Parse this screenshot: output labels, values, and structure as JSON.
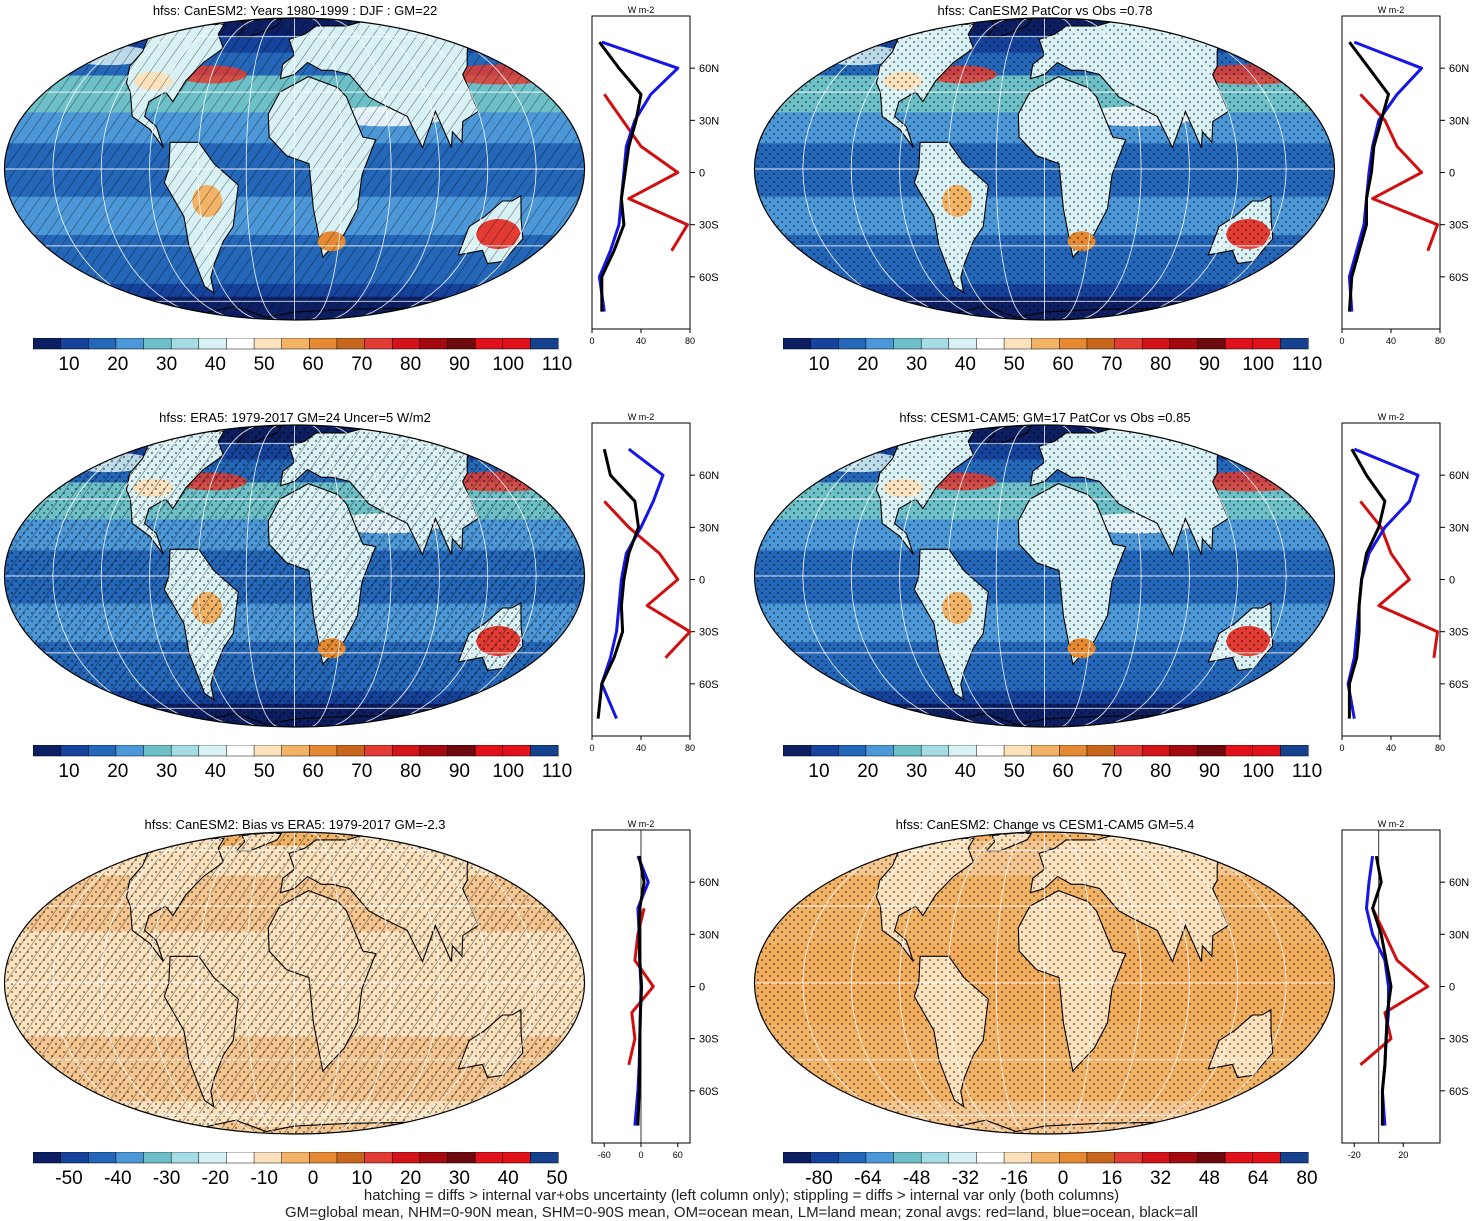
{
  "panels": [
    {
      "title": "hfss: CanESM2: Years 1980-1999 : DJF : GM=22",
      "colorbar": [
        "10",
        "20",
        "30",
        "40",
        "50",
        "60",
        "70",
        "80",
        "90",
        "100",
        "110"
      ],
      "zonal_x_ticks": [
        "0",
        "40",
        "80"
      ],
      "kind": "clim",
      "hatch": true,
      "stipple": false
    },
    {
      "title": "hfss: CanESM2 PatCor vs Obs =0.78",
      "colorbar": [
        "10",
        "20",
        "30",
        "40",
        "50",
        "60",
        "70",
        "80",
        "90",
        "100",
        "110"
      ],
      "zonal_x_ticks": [
        "0",
        "40",
        "80"
      ],
      "kind": "clim",
      "hatch": false,
      "stipple": true
    },
    {
      "title": "hfss: ERA5: 1979-2017 GM=24 Uncer=5 W/m2",
      "colorbar": [
        "10",
        "20",
        "30",
        "40",
        "50",
        "60",
        "70",
        "80",
        "90",
        "100",
        "110"
      ],
      "zonal_x_ticks": [
        "0",
        "40",
        "80"
      ],
      "kind": "clim",
      "hatch": true,
      "stipple": true
    },
    {
      "title": "hfss: CESM1-CAM5: GM=17 PatCor vs Obs =0.85",
      "colorbar": [
        "10",
        "20",
        "30",
        "40",
        "50",
        "60",
        "70",
        "80",
        "90",
        "100",
        "110"
      ],
      "zonal_x_ticks": [
        "0",
        "40",
        "80"
      ],
      "kind": "clim",
      "hatch": false,
      "stipple": true
    },
    {
      "title": "hfss: CanESM2: Bias vs ERA5: 1979-2017 GM=-2.3",
      "colorbar": [
        "-50",
        "-40",
        "-30",
        "-20",
        "-10",
        "0",
        "10",
        "20",
        "30",
        "40",
        "50"
      ],
      "zonal_x_ticks": [
        "-60",
        "0",
        "60"
      ],
      "kind": "diff",
      "hatch": true,
      "stipple": true
    },
    {
      "title": "hfss: CanESM2: Change vs CESM1-CAM5 GM=5.4",
      "colorbar": [
        "-80",
        "-64",
        "-48",
        "-32",
        "-16",
        "0",
        "16",
        "32",
        "48",
        "64",
        "80"
      ],
      "zonal_x_ticks": [
        "-20",
        "20"
      ],
      "kind": "diff",
      "hatch": false,
      "stipple": true
    }
  ],
  "zonal_unit": "W m-2",
  "lat_labels": [
    "60N",
    "30N",
    "0",
    "30S",
    "60S"
  ],
  "footer": {
    "line1": "hatching = diffs > internal var+obs uncertainty (left column only); stippling = diffs > internal var only (both columns)",
    "line2": "GM=global mean, NHM=0-90N mean, SHM=0-90S mean, OM=ocean mean, LM=land mean; zonal avgs: red=land, blue=ocean, black=all"
  },
  "colors": {
    "palette": [
      "#0d1f63",
      "#15429b",
      "#2466b7",
      "#4c97d8",
      "#6dc0c7",
      "#a5dce4",
      "#d7f1f4",
      "#ffffff",
      "#fbe2bd",
      "#f3b366",
      "#e58a32",
      "#c9661d",
      "#e23b33",
      "#d2141a",
      "#a3090e",
      "#6e0a0e",
      "#e0111b",
      "#e01119",
      "#15418f"
    ],
    "land_line": "#d01010",
    "ocean_line": "#1515e8",
    "all_line": "#000000"
  },
  "chart_data": [
    {
      "type": "heatmap",
      "title": "hfss: CanESM2: Years 1980-1999 : DJF : GM=22",
      "colorbar_ticks": [
        10,
        20,
        30,
        40,
        50,
        60,
        70,
        80,
        90,
        100,
        110
      ],
      "zonal_mean": {
        "xlim": [
          0,
          80
        ],
        "ylim": [
          -90,
          90
        ],
        "lat": [
          -80,
          -60,
          -45,
          -30,
          -15,
          0,
          15,
          30,
          45,
          60,
          75
        ],
        "land": [
          5,
          null,
          65,
          78,
          30,
          70,
          40,
          25,
          10,
          null,
          null
        ],
        "ocean": [
          10,
          6,
          15,
          22,
          24,
          26,
          28,
          35,
          48,
          70,
          8
        ],
        "all": [
          8,
          8,
          18,
          26,
          24,
          27,
          30,
          36,
          40,
          22,
          6
        ]
      }
    },
    {
      "type": "heatmap",
      "title": "hfss: CanESM2 PatCor vs Obs =0.78",
      "colorbar_ticks": [
        10,
        20,
        30,
        40,
        50,
        60,
        70,
        80,
        90,
        100,
        110
      ],
      "zonal_mean": {
        "xlim": [
          0,
          80
        ],
        "ylim": [
          -90,
          90
        ],
        "lat": [
          -80,
          -60,
          -45,
          -30,
          -15,
          0,
          15,
          30,
          45,
          60,
          75
        ],
        "land": [
          5,
          null,
          70,
          78,
          25,
          65,
          45,
          35,
          15,
          null,
          null
        ],
        "ocean": [
          8,
          6,
          12,
          18,
          20,
          22,
          25,
          30,
          45,
          65,
          10
        ],
        "all": [
          6,
          8,
          14,
          20,
          20,
          24,
          26,
          32,
          38,
          22,
          6
        ]
      }
    },
    {
      "type": "heatmap",
      "title": "hfss: ERA5: 1979-2017 GM=24 Uncer=5 W/m2",
      "colorbar_ticks": [
        10,
        20,
        30,
        40,
        50,
        60,
        70,
        80,
        90,
        100,
        110
      ],
      "zonal_mean": {
        "xlim": [
          0,
          80
        ],
        "ylim": [
          -90,
          90
        ],
        "lat": [
          -80,
          -60,
          -45,
          -30,
          -15,
          0,
          15,
          30,
          45,
          60,
          75
        ],
        "land": [
          0,
          null,
          60,
          80,
          45,
          70,
          55,
          30,
          10,
          null,
          null
        ],
        "ocean": [
          20,
          8,
          15,
          20,
          22,
          24,
          28,
          40,
          50,
          58,
          30
        ],
        "all": [
          5,
          8,
          18,
          25,
          24,
          26,
          30,
          38,
          35,
          15,
          10
        ]
      }
    },
    {
      "type": "heatmap",
      "title": "hfss: CESM1-CAM5: GM=17 PatCor vs Obs =0.85",
      "colorbar_ticks": [
        10,
        20,
        30,
        40,
        50,
        60,
        70,
        80,
        90,
        100,
        110
      ],
      "zonal_mean": {
        "xlim": [
          0,
          80
        ],
        "ylim": [
          -90,
          90
        ],
        "lat": [
          -80,
          -60,
          -45,
          -30,
          -15,
          0,
          15,
          30,
          45,
          60,
          75
        ],
        "land": [
          5,
          null,
          75,
          78,
          30,
          55,
          40,
          32,
          15,
          null,
          null
        ],
        "ocean": [
          10,
          5,
          10,
          12,
          14,
          16,
          22,
          35,
          55,
          62,
          10
        ],
        "all": [
          6,
          6,
          12,
          14,
          14,
          16,
          20,
          30,
          35,
          20,
          8
        ]
      }
    },
    {
      "type": "heatmap",
      "title": "hfss: CanESM2: Bias vs ERA5: 1979-2017 GM=-2.3",
      "colorbar_ticks": [
        -50,
        -40,
        -30,
        -20,
        -10,
        0,
        10,
        20,
        30,
        40,
        50
      ],
      "zonal_mean": {
        "xlim": [
          -80,
          80
        ],
        "ylim": [
          -90,
          90
        ],
        "lat": [
          -80,
          -60,
          -45,
          -30,
          -15,
          0,
          15,
          30,
          45,
          60,
          75
        ],
        "land": [
          5,
          null,
          -20,
          -10,
          -15,
          20,
          -10,
          -5,
          5,
          null,
          null
        ],
        "ocean": [
          -10,
          -5,
          -3,
          -2,
          -1,
          0,
          -2,
          -3,
          -5,
          12,
          -5
        ],
        "all": [
          -5,
          -3,
          -2,
          -2,
          -1,
          1,
          -2,
          -3,
          -2,
          5,
          -3
        ]
      }
    },
    {
      "type": "heatmap",
      "title": "hfss: CanESM2: Change vs CESM1-CAM5 GM=5.4",
      "colorbar_ticks": [
        -80,
        -64,
        -48,
        -32,
        -16,
        0,
        16,
        32,
        48,
        64,
        80
      ],
      "zonal_mean": {
        "xlim": [
          -30,
          50
        ],
        "ylim": [
          -90,
          90
        ],
        "lat": [
          -80,
          -60,
          -45,
          -30,
          -15,
          0,
          15,
          30,
          45,
          60,
          75
        ],
        "land": [
          -5,
          null,
          -15,
          10,
          5,
          40,
          15,
          5,
          -5,
          null,
          null
        ],
        "ocean": [
          5,
          3,
          5,
          6,
          8,
          8,
          5,
          -5,
          -10,
          -8,
          -5
        ],
        "all": [
          3,
          3,
          5,
          6,
          7,
          10,
          6,
          2,
          -5,
          2,
          -2
        ]
      }
    }
  ]
}
